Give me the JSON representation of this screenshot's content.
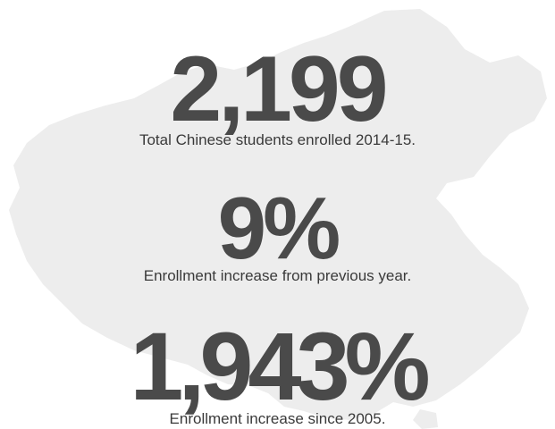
{
  "stats": [
    {
      "value": "2,199",
      "caption": "Total Chinese students enrolled 2014-15."
    },
    {
      "value": "9%",
      "caption": "Enrollment increase from previous year."
    },
    {
      "value": "1,943%",
      "caption": "Enrollment increase since 2005."
    }
  ],
  "colors": {
    "map_fill": "#ededed",
    "number_text": "#4a4a4a",
    "caption_text": "#3a3a3a",
    "background": "#ffffff"
  }
}
